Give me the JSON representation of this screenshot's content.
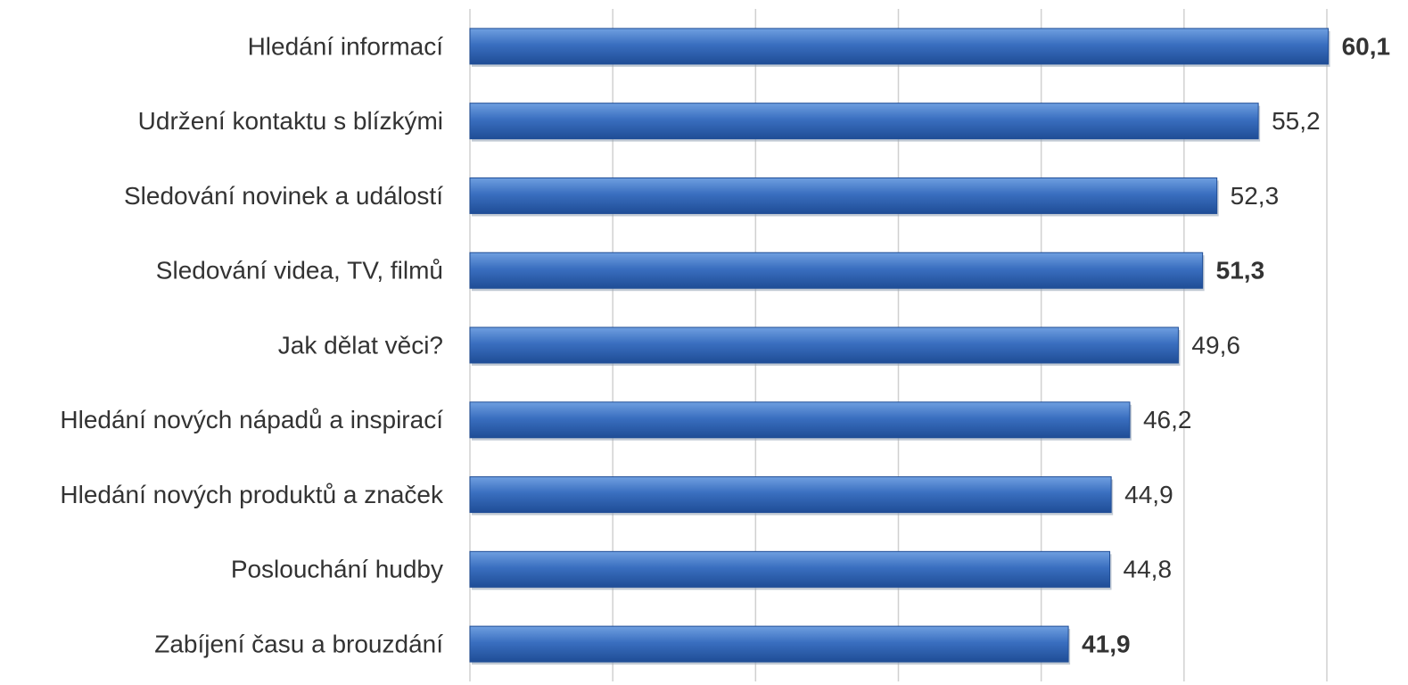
{
  "chart_data": {
    "type": "bar",
    "orientation": "horizontal",
    "categories": [
      "Hledání informací",
      "Udržení kontaktu s blízkými",
      "Sledování novinek a událostí",
      "Sledování videa, TV, filmů",
      "Jak dělat věci?",
      "Hledání nových nápadů a inspirací",
      "Hledání nových produktů a značek",
      "Poslouchání hudby",
      "Zabíjení času a brouzdání"
    ],
    "values": [
      60.1,
      55.2,
      52.3,
      51.3,
      49.6,
      46.2,
      44.9,
      44.8,
      41.9
    ],
    "value_labels": [
      "60,1",
      "55,2",
      "52,3",
      "51,3",
      "49,6",
      "46,2",
      "44,9",
      "44,8",
      "41,9"
    ],
    "bold_labels": [
      true,
      false,
      false,
      true,
      false,
      false,
      false,
      false,
      true
    ],
    "color": "#3a6fc0",
    "xlim": [
      0,
      60
    ],
    "xticks": [
      0,
      10,
      20,
      30,
      40,
      50,
      60
    ],
    "grid": true
  }
}
